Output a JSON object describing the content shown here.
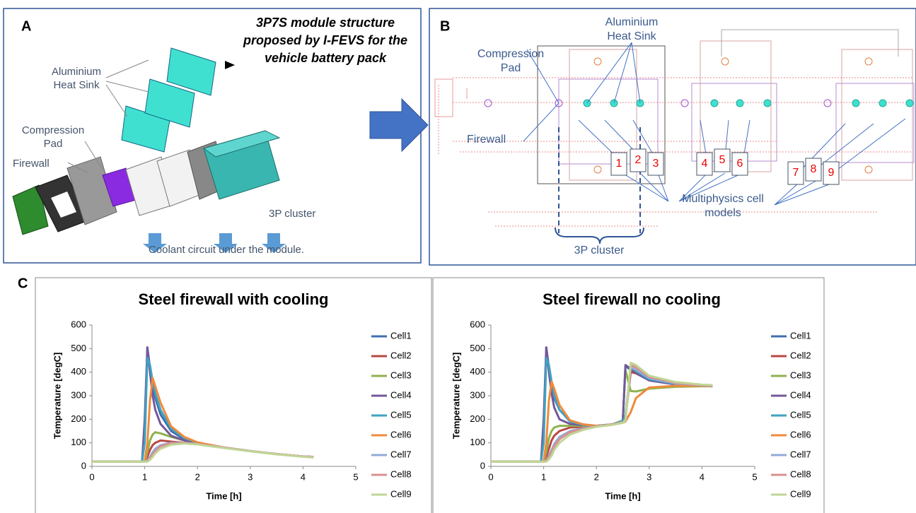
{
  "panel_a": {
    "letter": "A",
    "caption": [
      "3P7S module structure",
      "proposed by I-FEVS for the",
      "vehicle battery pack"
    ],
    "heat_sink": [
      "Aluminium",
      "Heat Sink"
    ],
    "compression_pad": [
      "Compression",
      "Pad"
    ],
    "firewall": "Firewall",
    "cluster": "3P cluster",
    "coolant": "Coolant circuit under the module."
  },
  "panel_b": {
    "letter": "B",
    "heat_sink": [
      "Aluminium",
      "Heat Sink"
    ],
    "compression_pad": [
      "Compression",
      "Pad"
    ],
    "firewall": "Firewall",
    "cell_models": [
      "Multiphysics cell",
      "models"
    ],
    "cluster": "3P cluster",
    "cells": [
      "1",
      "2",
      "3",
      "4",
      "5",
      "6",
      "7",
      "8",
      "9"
    ]
  },
  "panel_c": {
    "letter": "C"
  },
  "chart_data": [
    {
      "type": "line",
      "title": "Steel firewall with cooling",
      "x_label": "Time [h]",
      "y_label": "Temperature [degC]",
      "xlim": [
        0,
        5
      ],
      "ylim": [
        0,
        600
      ],
      "xticks": [
        0,
        1,
        2,
        3,
        4,
        5
      ],
      "yticks": [
        0,
        100,
        200,
        300,
        400,
        500,
        600
      ],
      "x": [
        0,
        0.95,
        1.0,
        1.05,
        1.1,
        1.15,
        1.2,
        1.3,
        1.5,
        1.75,
        2,
        2.5,
        3,
        3.5,
        4,
        4.2
      ],
      "series": [
        {
          "name": "Cell1",
          "color": "#3f6fb0",
          "values": [
            20,
            20,
            150,
            505,
            420,
            340,
            290,
            220,
            150,
            115,
            100,
            80,
            65,
            52,
            42,
            40
          ]
        },
        {
          "name": "Cell2",
          "color": "#b94743",
          "values": [
            20,
            20,
            20,
            40,
            70,
            90,
            100,
            110,
            105,
            100,
            95,
            80,
            65,
            52,
            42,
            40
          ]
        },
        {
          "name": "Cell3",
          "color": "#8fb24c",
          "values": [
            20,
            20,
            20,
            60,
            110,
            135,
            145,
            140,
            125,
            110,
            100,
            80,
            65,
            52,
            42,
            40
          ]
        },
        {
          "name": "Cell4",
          "color": "#74589a",
          "values": [
            20,
            20,
            200,
            505,
            400,
            300,
            240,
            180,
            130,
            110,
            100,
            80,
            65,
            52,
            42,
            40
          ]
        },
        {
          "name": "Cell5",
          "color": "#3fa3c0",
          "values": [
            20,
            20,
            100,
            460,
            430,
            360,
            310,
            240,
            160,
            120,
            100,
            80,
            65,
            52,
            42,
            40
          ]
        },
        {
          "name": "Cell6",
          "color": "#f08a3c",
          "values": [
            20,
            20,
            20,
            100,
            280,
            375,
            340,
            270,
            170,
            125,
            102,
            80,
            65,
            52,
            42,
            40
          ]
        },
        {
          "name": "Cell7",
          "color": "#93a9d6",
          "values": [
            20,
            20,
            20,
            25,
            40,
            60,
            75,
            90,
            100,
            100,
            95,
            80,
            65,
            52,
            42,
            40
          ]
        },
        {
          "name": "Cell8",
          "color": "#d9908e",
          "values": [
            20,
            20,
            20,
            22,
            35,
            50,
            65,
            85,
            98,
            100,
            95,
            80,
            65,
            52,
            42,
            40
          ]
        },
        {
          "name": "Cell9",
          "color": "#bfd696",
          "values": [
            20,
            20,
            20,
            20,
            28,
            40,
            55,
            75,
            92,
            97,
            93,
            78,
            64,
            51,
            41,
            38
          ]
        }
      ]
    },
    {
      "type": "line",
      "title": "Steel firewall no cooling",
      "x_label": "Time [h]",
      "y_label": "Temperature [degC]",
      "xlim": [
        0,
        5
      ],
      "ylim": [
        0,
        600
      ],
      "xticks": [
        0,
        1,
        2,
        3,
        4,
        5
      ],
      "yticks": [
        0,
        100,
        200,
        300,
        400,
        500,
        600
      ],
      "x": [
        0,
        0.95,
        1.0,
        1.05,
        1.1,
        1.15,
        1.2,
        1.3,
        1.5,
        1.75,
        2,
        2.3,
        2.5,
        2.55,
        2.65,
        2.75,
        3,
        3.5,
        4,
        4.2
      ],
      "series": [
        {
          "name": "Cell1",
          "color": "#3f6fb0",
          "values": [
            20,
            20,
            150,
            505,
            420,
            340,
            290,
            240,
            195,
            178,
            172,
            178,
            195,
            425,
            410,
            395,
            365,
            348,
            342,
            340
          ]
        },
        {
          "name": "Cell2",
          "color": "#b94743",
          "values": [
            20,
            20,
            20,
            40,
            75,
            110,
            130,
            150,
            165,
            168,
            172,
            178,
            190,
            205,
            400,
            395,
            370,
            350,
            342,
            340
          ]
        },
        {
          "name": "Cell3",
          "color": "#8fb24c",
          "values": [
            20,
            20,
            20,
            60,
            120,
            150,
            165,
            172,
            172,
            172,
            172,
            178,
            195,
            410,
            320,
            318,
            330,
            338,
            340,
            340
          ]
        },
        {
          "name": "Cell4",
          "color": "#74589a",
          "values": [
            20,
            20,
            200,
            505,
            400,
            310,
            250,
            200,
            180,
            175,
            172,
            178,
            190,
            430,
            415,
            398,
            365,
            348,
            342,
            340
          ]
        },
        {
          "name": "Cell5",
          "color": "#3fa3c0",
          "values": [
            20,
            20,
            100,
            460,
            430,
            360,
            300,
            240,
            190,
            176,
            172,
            178,
            192,
            215,
            420,
            405,
            370,
            350,
            342,
            340
          ]
        },
        {
          "name": "Cell6",
          "color": "#f08a3c",
          "values": [
            20,
            20,
            20,
            100,
            280,
            360,
            330,
            260,
            195,
            178,
            172,
            176,
            185,
            190,
            230,
            290,
            335,
            342,
            342,
            340
          ]
        },
        {
          "name": "Cell7",
          "color": "#93a9d6",
          "values": [
            20,
            20,
            20,
            25,
            45,
            70,
            95,
            125,
            150,
            162,
            170,
            178,
            188,
            198,
            420,
            410,
            375,
            352,
            344,
            342
          ]
        },
        {
          "name": "Cell8",
          "color": "#d9908e",
          "values": [
            20,
            20,
            20,
            22,
            38,
            60,
            85,
            115,
            145,
            160,
            170,
            178,
            187,
            196,
            430,
            420,
            380,
            355,
            345,
            343
          ]
        },
        {
          "name": "Cell9",
          "color": "#bfd696",
          "values": [
            20,
            20,
            20,
            20,
            30,
            45,
            70,
            100,
            135,
            155,
            168,
            176,
            185,
            194,
            440,
            430,
            385,
            358,
            347,
            345
          ]
        }
      ]
    }
  ]
}
